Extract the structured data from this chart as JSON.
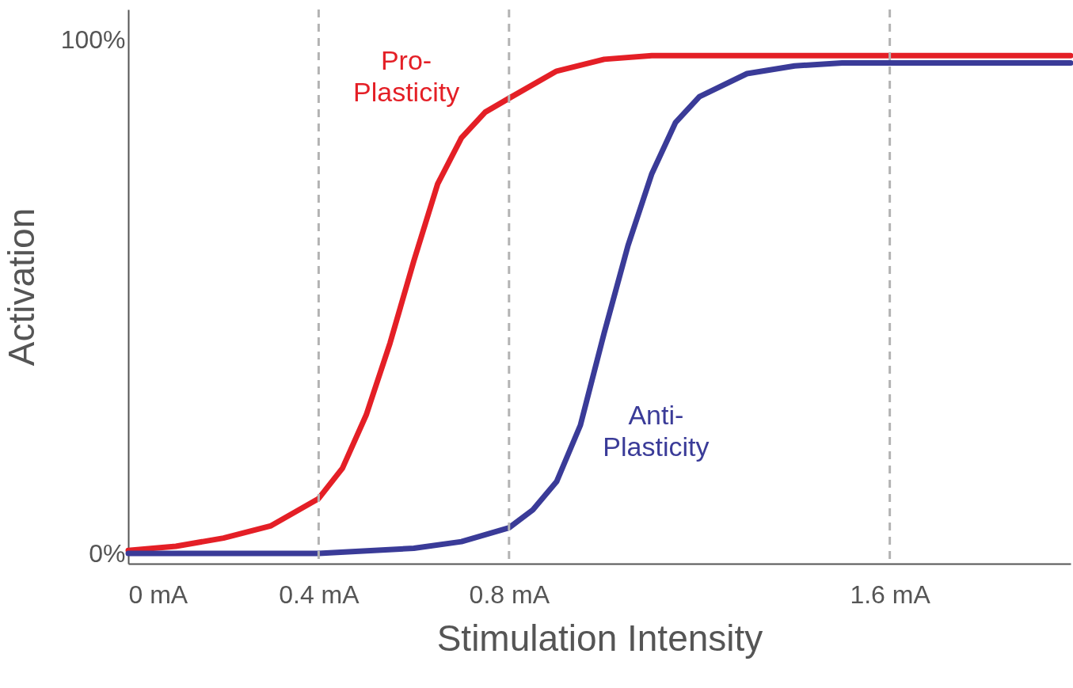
{
  "chart_data": {
    "type": "line",
    "xlabel": "Stimulation Intensity",
    "ylabel": "Activation",
    "xlim": [
      0,
      1.98
    ],
    "ylim": [
      -2,
      106
    ],
    "xticks": [
      {
        "value": 0,
        "label": "0 mA"
      },
      {
        "value": 0.4,
        "label": "0.4 mA"
      },
      {
        "value": 0.8,
        "label": "0.8 mA"
      },
      {
        "value": 1.6,
        "label": "1.6 mA"
      }
    ],
    "yticks": [
      {
        "value": 0,
        "label": "0%"
      },
      {
        "value": 100,
        "label": "100%"
      }
    ],
    "grid": false,
    "legend": false,
    "line_style": "solid",
    "marker": "none",
    "ref_lines": [
      {
        "axis": "x",
        "value": 0.4,
        "color": "#b3b3b3",
        "line_style": "dashed"
      },
      {
        "axis": "x",
        "value": 0.8,
        "color": "#b3b3b3",
        "line_style": "dashed"
      },
      {
        "axis": "x",
        "value": 1.6,
        "color": "#b3b3b3",
        "line_style": "dashed"
      }
    ],
    "series": [
      {
        "name": "Pro-\nPlasticity",
        "color": "#e41f26",
        "x": [
          0,
          0.1,
          0.2,
          0.3,
          0.4,
          0.45,
          0.5,
          0.55,
          0.6,
          0.65,
          0.7,
          0.75,
          0.8,
          0.9,
          1.0,
          1.1,
          1.3,
          1.98
        ],
        "values": [
          0.6,
          1.4,
          3,
          5.4,
          10.7,
          16.6,
          27,
          41,
          57,
          72,
          81,
          86,
          88.7,
          94,
          96.3,
          97,
          97,
          97
        ]
      },
      {
        "name": "Anti-\nPlasticity",
        "color": "#3a3b98",
        "x": [
          0,
          0.4,
          0.6,
          0.7,
          0.8,
          0.85,
          0.9,
          0.95,
          1.0,
          1.05,
          1.1,
          1.15,
          1.2,
          1.3,
          1.4,
          1.5,
          1.98
        ],
        "values": [
          0,
          0,
          1,
          2.3,
          5,
          8.5,
          14,
          25,
          43,
          60,
          74,
          84,
          89,
          93.5,
          95,
          95.6,
          95.6
        ]
      }
    ]
  }
}
